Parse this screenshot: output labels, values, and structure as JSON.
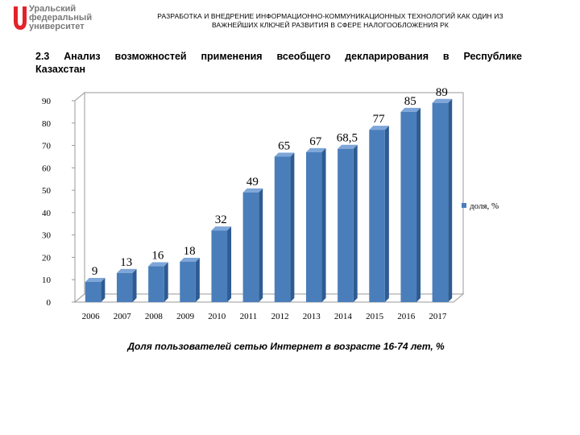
{
  "logo": {
    "lines": [
      "Уральский",
      "федеральный",
      "университет"
    ],
    "color": "#7a7a7a",
    "mark_color": "#e3222b"
  },
  "header": {
    "line1": "РАЗРАБОТКА И ВНЕДРЕНИЕ ИНФОРМАЦИОННО-КОММУНИКАЦИОННЫХ ТЕХНОЛОГИЙ КАК ОДИН ИЗ",
    "line2": "ВАЖНЕЙШИХ КЛЮЧЕЙ РАЗВИТИЯ В СФЕРЕ НАЛОГООБЛОЖЕНИЯ РК"
  },
  "section": {
    "line1": "2.3 Анализ возможностей применения всеобщего декларирования в Республике",
    "line2": "Казахстан"
  },
  "caption": "Доля пользователей сетью Интернет в возрасте 16-74 лет, %",
  "chart_data": {
    "type": "bar",
    "categories": [
      "2006",
      "2007",
      "2008",
      "2009",
      "2010",
      "2011",
      "2012",
      "2013",
      "2014",
      "2015",
      "2016",
      "2017"
    ],
    "series": [
      {
        "name": "доля, %",
        "values": [
          9,
          13,
          16,
          18,
          32,
          49,
          65,
          67,
          68.5,
          77,
          85,
          89
        ],
        "color": "#4a7ebb"
      }
    ],
    "data_labels": [
      "9",
      "13",
      "16",
      "18",
      "32",
      "49",
      "65",
      "67",
      "68,5",
      "77",
      "85",
      "89"
    ],
    "y_ticks": [
      "0",
      "10",
      "20",
      "30",
      "40",
      "50",
      "60",
      "70",
      "80",
      "90"
    ],
    "ylim": [
      0,
      90
    ],
    "legend_position": "right",
    "grid": false,
    "three_d": true
  }
}
